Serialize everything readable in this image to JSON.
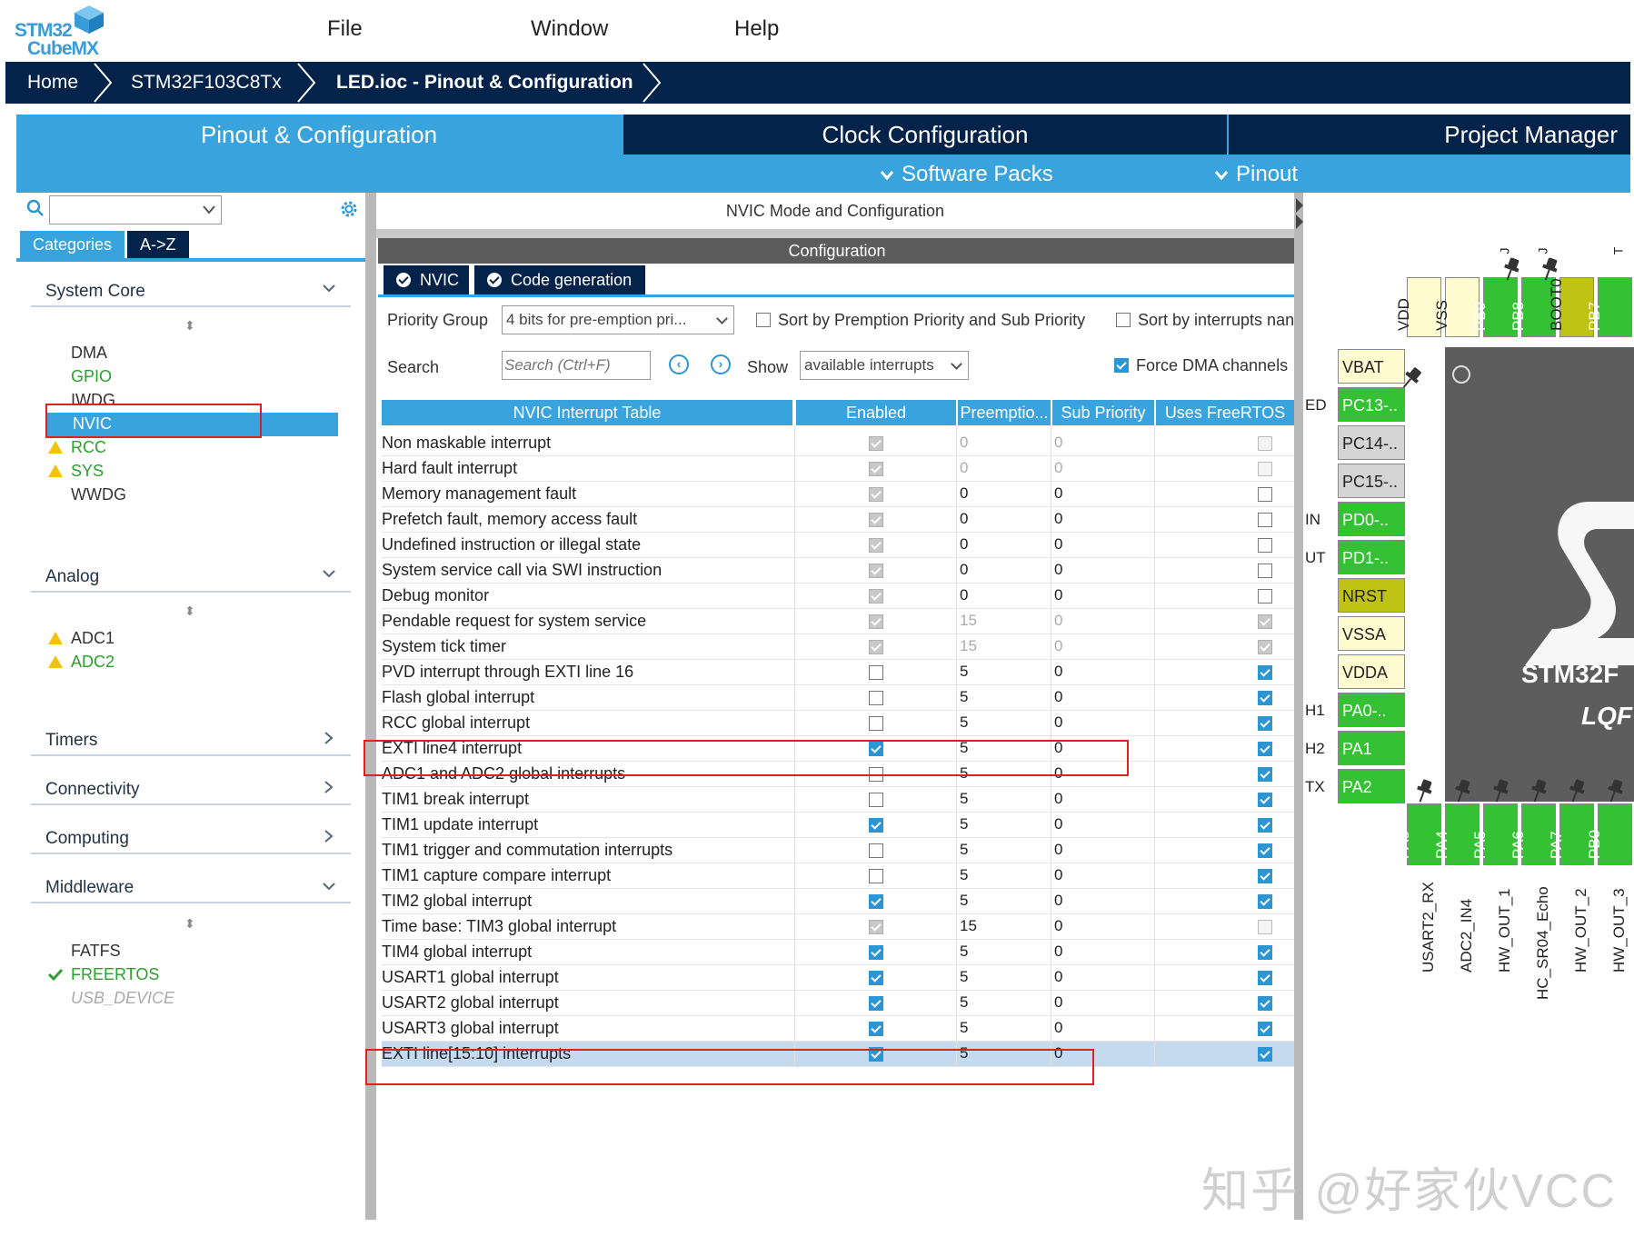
{
  "app": {
    "logo_line1": "STM32",
    "logo_line2": "CubeMX",
    "menu": [
      "File",
      "Window",
      "Help"
    ]
  },
  "breadcrumb": [
    "Home",
    "STM32F103C8Tx",
    "LED.ioc - Pinout & Configuration"
  ],
  "tabs": {
    "pinout": "Pinout & Configuration",
    "clock": "Clock Configuration",
    "project": "Project Manager",
    "software_packs": "Software Packs",
    "pinout_sub": "Pinout"
  },
  "left": {
    "search_value": "",
    "tab_categories": "Categories",
    "tab_az": "A->Z",
    "system_core": "System Core",
    "system_core_items": [
      "DMA",
      "GPIO",
      "IWDG",
      "NVIC",
      "RCC",
      "SYS",
      "WWDG"
    ],
    "analog": "Analog",
    "analog_items": [
      "ADC1",
      "ADC2"
    ],
    "timers": "Timers",
    "connectivity": "Connectivity",
    "computing": "Computing",
    "middleware": "Middleware",
    "middleware_items": [
      "FATFS",
      "FREERTOS",
      "USB_DEVICE"
    ]
  },
  "center": {
    "mode_title": "NVIC Mode and Configuration",
    "config_title": "Configuration",
    "subtab_nvic": "NVIC",
    "subtab_codegen": "Code generation",
    "priority_group_label": "Priority Group",
    "priority_group_value": "4 bits for pre-emption pri...",
    "sort_premption": "Sort by Premption Priority and Sub Priority",
    "sort_interrupts": "Sort by interrupts nan",
    "search_label": "Search",
    "search_placeholder": "Search (Ctrl+F)",
    "show_label": "Show",
    "show_value": "available interrupts",
    "force_dma": "Force DMA channels",
    "table_headers": [
      "NVIC Interrupt Table",
      "Enabled",
      "Preemptio...",
      "Sub Priority",
      "Uses FreeRTOS"
    ],
    "rows": [
      {
        "name": "Non maskable interrupt",
        "enabled": "grey",
        "pre": "0",
        "sub": "0",
        "rtos": "offgrey",
        "dim": true
      },
      {
        "name": "Hard fault interrupt",
        "enabled": "grey",
        "pre": "0",
        "sub": "0",
        "rtos": "offgrey",
        "dim": true
      },
      {
        "name": "Memory management fault",
        "enabled": "grey",
        "pre": "0",
        "sub": "0",
        "rtos": "off",
        "dim": false
      },
      {
        "name": "Prefetch fault, memory access fault",
        "enabled": "grey",
        "pre": "0",
        "sub": "0",
        "rtos": "off",
        "dim": false
      },
      {
        "name": "Undefined instruction or illegal state",
        "enabled": "grey",
        "pre": "0",
        "sub": "0",
        "rtos": "off",
        "dim": false
      },
      {
        "name": "System service call via SWI instruction",
        "enabled": "grey",
        "pre": "0",
        "sub": "0",
        "rtos": "off",
        "dim": false
      },
      {
        "name": "Debug monitor",
        "enabled": "grey",
        "pre": "0",
        "sub": "0",
        "rtos": "off",
        "dim": false
      },
      {
        "name": "Pendable request for system service",
        "enabled": "grey",
        "pre": "15",
        "sub": "0",
        "rtos": "grey",
        "dim": true
      },
      {
        "name": "System tick timer",
        "enabled": "grey",
        "pre": "15",
        "sub": "0",
        "rtos": "grey",
        "dim": true
      },
      {
        "name": "PVD interrupt through EXTI line 16",
        "enabled": "off",
        "pre": "5",
        "sub": "0",
        "rtos": "on",
        "dim": false
      },
      {
        "name": "Flash global interrupt",
        "enabled": "off",
        "pre": "5",
        "sub": "0",
        "rtos": "on",
        "dim": false
      },
      {
        "name": "RCC global interrupt",
        "enabled": "off",
        "pre": "5",
        "sub": "0",
        "rtos": "on",
        "dim": false
      },
      {
        "name": "EXTI line4 interrupt",
        "enabled": "on",
        "pre": "5",
        "sub": "0",
        "rtos": "on",
        "dim": false
      },
      {
        "name": "ADC1 and ADC2 global interrupts",
        "enabled": "off",
        "pre": "5",
        "sub": "0",
        "rtos": "on",
        "dim": false
      },
      {
        "name": "TIM1 break interrupt",
        "enabled": "off",
        "pre": "5",
        "sub": "0",
        "rtos": "on",
        "dim": false
      },
      {
        "name": "TIM1 update interrupt",
        "enabled": "on",
        "pre": "5",
        "sub": "0",
        "rtos": "on",
        "dim": false
      },
      {
        "name": "TIM1 trigger and commutation interrupts",
        "enabled": "off",
        "pre": "5",
        "sub": "0",
        "rtos": "on",
        "dim": false
      },
      {
        "name": "TIM1 capture compare interrupt",
        "enabled": "off",
        "pre": "5",
        "sub": "0",
        "rtos": "on",
        "dim": false
      },
      {
        "name": "TIM2 global interrupt",
        "enabled": "on",
        "pre": "5",
        "sub": "0",
        "rtos": "on",
        "dim": false
      },
      {
        "name": "Time base: TIM3 global interrupt",
        "enabled": "grey",
        "pre": "15",
        "sub": "0",
        "rtos": "offgrey",
        "dim": false
      },
      {
        "name": "TIM4 global interrupt",
        "enabled": "on",
        "pre": "5",
        "sub": "0",
        "rtos": "on",
        "dim": false
      },
      {
        "name": "USART1 global interrupt",
        "enabled": "on",
        "pre": "5",
        "sub": "0",
        "rtos": "on",
        "dim": false
      },
      {
        "name": "USART2 global interrupt",
        "enabled": "on",
        "pre": "5",
        "sub": "0",
        "rtos": "on",
        "dim": false
      },
      {
        "name": "USART3 global interrupt",
        "enabled": "on",
        "pre": "5",
        "sub": "0",
        "rtos": "on",
        "dim": false
      },
      {
        "name": "EXTI line[15:10] interrupts",
        "enabled": "on",
        "pre": "5",
        "sub": "0",
        "rtos": "on",
        "dim": false,
        "selected": true
      }
    ]
  },
  "chip": {
    "top_pins": [
      "VDD",
      "VSS",
      "PB9",
      "PB8",
      "BOOT0",
      "PB7"
    ],
    "top_partial": [
      "J",
      "J",
      "T"
    ],
    "left_pins": [
      "VBAT",
      "PC13-..",
      "PC14-..",
      "PC15-..",
      "PD0-..",
      "PD1-..",
      "NRST",
      "VSSA",
      "VDDA",
      "PA0-..",
      "PA1",
      "PA2"
    ],
    "left_partial": [
      "ED",
      "IN",
      "UT",
      "H1",
      "H2",
      "TX"
    ],
    "bottom_pins": [
      "PA3",
      "PA4",
      "PA5",
      "PA6",
      "PA7",
      "PB0"
    ],
    "bottom_signals": [
      "USART2_RX",
      "ADC2_IN4",
      "HW_OUT_1",
      "HC_SR04_Echo",
      "HW_OUT_2",
      "HW_OUT_3"
    ],
    "chip_name": "STM32F",
    "chip_pkg": "LQF"
  },
  "watermark": "知乎 @好家伙VCC"
}
